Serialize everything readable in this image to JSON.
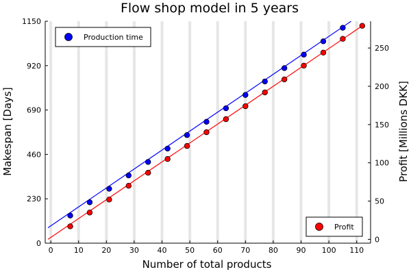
{
  "chart_data": {
    "type": "line",
    "title": "Flow shop model in 5 years",
    "xlabel": "Number of total products",
    "ylabel_left": "Makespan [Days]",
    "ylabel_right": "Profit [Millions DKK]",
    "xlim": [
      -2,
      115
    ],
    "ylim_left": [
      0,
      1150
    ],
    "ylim_right": [
      -5,
      285
    ],
    "x_ticks": [
      0,
      10,
      20,
      30,
      40,
      50,
      60,
      70,
      80,
      90,
      100,
      110
    ],
    "y_left_ticks": [
      0,
      230,
      460,
      690,
      920,
      1150
    ],
    "y_right_ticks": [
      0,
      50,
      100,
      150,
      200,
      250
    ],
    "vertical_bands_x": [
      0,
      10,
      20,
      30,
      40,
      50,
      60,
      70,
      80,
      90,
      100,
      110
    ],
    "colors": {
      "production": "#0000ff",
      "profit": "#ff0000",
      "band": "#e6e6e6"
    },
    "series": [
      {
        "name": "Production time",
        "axis": "left",
        "x": [
          7,
          14,
          21,
          28,
          35,
          42,
          49,
          56,
          63,
          70,
          77,
          84,
          91,
          98,
          105
        ],
        "y": [
          143,
          212,
          282,
          351,
          421,
          490,
          560,
          629,
          699,
          768,
          838,
          907,
          977,
          1046,
          1116
        ],
        "fit": {
          "x0": -1,
          "y0": 80,
          "x1": 108,
          "y1": 1150
        }
      },
      {
        "name": "Profit",
        "axis": "right",
        "x": [
          7,
          14,
          21,
          28,
          35,
          42,
          49,
          56,
          63,
          70,
          77,
          84,
          91,
          98,
          105,
          112
        ],
        "y": [
          17,
          35,
          52,
          70,
          87,
          105,
          122,
          140,
          157,
          174,
          192,
          209,
          227,
          244,
          262,
          279
        ],
        "fit": {
          "x0": -1,
          "y0": 0,
          "x1": 112,
          "y1": 279
        }
      }
    ],
    "legends": [
      {
        "label": "Production time",
        "series": 0,
        "placement": "top-left"
      },
      {
        "label": "Profit",
        "series": 1,
        "placement": "bottom-right"
      }
    ]
  }
}
